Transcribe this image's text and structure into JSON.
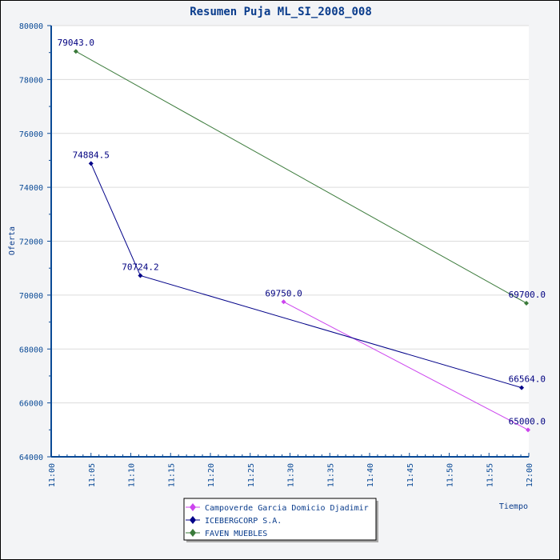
{
  "chart_data": {
    "type": "line",
    "title": "Resumen Puja ML_SI_2008_008",
    "xlabel": "Tiempo",
    "ylabel": "Oferta",
    "ylim": [
      64000,
      80000
    ],
    "yticks": [
      64000,
      66000,
      68000,
      70000,
      72000,
      74000,
      76000,
      78000,
      80000
    ],
    "xlim_minutes": [
      0,
      60
    ],
    "xticks": [
      "11:00",
      "11:05",
      "11:10",
      "11:15",
      "11:20",
      "11:25",
      "11:30",
      "11:35",
      "11:40",
      "11:45",
      "11:50",
      "11:55",
      "12:00"
    ],
    "grid": true,
    "legend_position": "bottom-center",
    "series": [
      {
        "name": "Campoverde Garcia Domicio Djadimir",
        "color": "#cc44ee",
        "x": [
          29.2,
          59.9
        ],
        "y": [
          69750.0,
          65000.0
        ],
        "labels": [
          "69750.0",
          "65000.0"
        ]
      },
      {
        "name": "ICEBERGCORP S.A.",
        "color": "#000088",
        "x": [
          5.0,
          11.2,
          59.1
        ],
        "y": [
          74884.5,
          70724.2,
          66564.0
        ],
        "labels": [
          "74884.5",
          "70724.2",
          "66564.0"
        ]
      },
      {
        "name": "FAVEN MUEBLES",
        "color": "#3a7a3a",
        "x": [
          3.1,
          59.7
        ],
        "y": [
          79043.0,
          69700.0
        ],
        "labels": [
          "79043.0",
          "69700.0"
        ]
      }
    ]
  }
}
